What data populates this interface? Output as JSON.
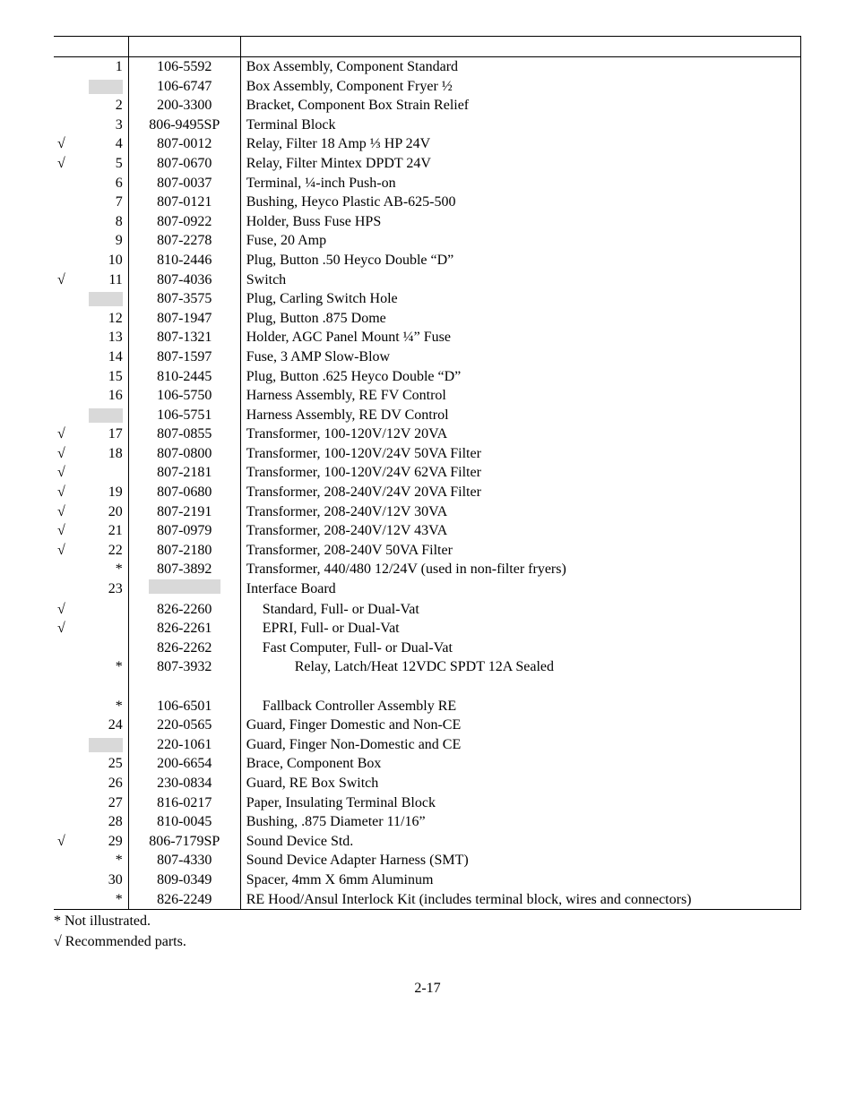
{
  "colors": {
    "background": "#ffffff",
    "text": "#000000",
    "border": "#000000",
    "shade": "#d9d9d9"
  },
  "typography": {
    "font_family": "Times New Roman",
    "font_size_pt": 12,
    "line_height": 1.35
  },
  "table": {
    "rows": [
      {
        "check": false,
        "item": "1",
        "part": "106-5592",
        "desc": "Box Assembly, Component Standard",
        "shade_item": false
      },
      {
        "check": false,
        "item": "",
        "part": "106-6747",
        "desc": "Box Assembly, Component Fryer ½",
        "shade_item": true
      },
      {
        "check": false,
        "item": "2",
        "part": "200-3300",
        "desc": "Bracket, Component Box Strain Relief"
      },
      {
        "check": false,
        "item": "3",
        "part": "806-9495SP",
        "desc": "Terminal Block"
      },
      {
        "check": true,
        "item": "4",
        "part": "807-0012",
        "desc": "Relay, Filter 18 Amp ⅓ HP 24V"
      },
      {
        "check": true,
        "item": "5",
        "part": "807-0670",
        "desc": "Relay, Filter Mintex DPDT 24V"
      },
      {
        "check": false,
        "item": "6",
        "part": "807-0037",
        "desc": "Terminal, ¼-inch Push-on"
      },
      {
        "check": false,
        "item": "7",
        "part": "807-0121",
        "desc": "Bushing, Heyco Plastic AB-625-500"
      },
      {
        "check": false,
        "item": "8",
        "part": "807-0922",
        "desc": "Holder, Buss Fuse HPS"
      },
      {
        "check": false,
        "item": "9",
        "part": "807-2278",
        "desc": "Fuse, 20 Amp"
      },
      {
        "check": false,
        "item": "10",
        "part": "810-2446",
        "desc": "Plug, Button .50 Heyco Double “D”"
      },
      {
        "check": true,
        "item": "11",
        "part": "807-4036",
        "desc": "Switch"
      },
      {
        "check": false,
        "item": "",
        "part": "807-3575",
        "desc": "Plug, Carling Switch Hole",
        "shade_item": true
      },
      {
        "check": false,
        "item": "12",
        "part": "807-1947",
        "desc": "Plug, Button .875 Dome"
      },
      {
        "check": false,
        "item": "13",
        "part": "807-1321",
        "desc": "Holder, AGC Panel Mount ¼” Fuse"
      },
      {
        "check": false,
        "item": "14",
        "part": "807-1597",
        "desc": "Fuse, 3 AMP Slow-Blow"
      },
      {
        "check": false,
        "item": "15",
        "part": "810-2445",
        "desc": "Plug, Button .625 Heyco Double “D”"
      },
      {
        "check": false,
        "item": "16",
        "part": "106-5750",
        "desc": "Harness Assembly, RE FV Control"
      },
      {
        "check": false,
        "item": "",
        "part": "106-5751",
        "desc": "Harness Assembly, RE DV Control",
        "shade_item": true
      },
      {
        "check": true,
        "item": "17",
        "part": "807-0855",
        "desc": "Transformer, 100-120V/12V 20VA"
      },
      {
        "check": true,
        "item": "18",
        "part": "807-0800",
        "desc": "Transformer, 100-120V/24V 50VA Filter"
      },
      {
        "check": true,
        "item": "",
        "part": "807-2181",
        "desc": "Transformer, 100-120V/24V 62VA Filter",
        "check_shade": true
      },
      {
        "check": true,
        "item": "19",
        "part": "807-0680",
        "desc": "Transformer, 208-240V/24V 20VA Filter"
      },
      {
        "check": true,
        "item": "20",
        "part": "807-2191",
        "desc": "Transformer, 208-240V/12V 30VA"
      },
      {
        "check": true,
        "item": "21",
        "part": "807-0979",
        "desc": "Transformer, 208-240V/12V 43VA"
      },
      {
        "check": true,
        "item": "22",
        "part": "807-2180",
        "desc": "Transformer, 208-240V 50VA Filter"
      },
      {
        "check": false,
        "item": "*",
        "part": "807-3892",
        "desc": "Transformer, 440/480 12/24V (used in non-filter fryers)"
      },
      {
        "check": false,
        "item": "23",
        "part": "",
        "desc": "Interface Board",
        "shade_part": true
      },
      {
        "check": true,
        "item": "",
        "part": "826-2260",
        "desc": "Standard, Full- or Dual-Vat",
        "indent": 1,
        "check_shade": true
      },
      {
        "check": true,
        "item": "",
        "part": "826-2261",
        "desc": "EPRI, Full- or Dual-Vat",
        "indent": 1,
        "check_shade": true
      },
      {
        "check": false,
        "item": "",
        "part": "826-2262",
        "desc": "Fast Computer, Full- or Dual-Vat",
        "indent": 1
      },
      {
        "check": false,
        "item": "*",
        "part": "807-3932",
        "desc": "Relay, Latch/Heat 12VDC SPDT 12A Sealed",
        "indent": 2
      },
      {
        "blank": true
      },
      {
        "check": false,
        "item": "*",
        "part": "106-6501",
        "desc": "Fallback Controller Assembly RE",
        "indent": 1
      },
      {
        "check": false,
        "item": "24",
        "part": "220-0565",
        "desc": "Guard, Finger Domestic and Non-CE"
      },
      {
        "check": false,
        "item": "",
        "part": "220-1061",
        "desc": "Guard, Finger Non-Domestic and CE",
        "shade_item": true
      },
      {
        "check": false,
        "item": "25",
        "part": "200-6654",
        "desc": "Brace, Component Box"
      },
      {
        "check": false,
        "item": "26",
        "part": "230-0834",
        "desc": "Guard, RE Box Switch"
      },
      {
        "check": false,
        "item": "27",
        "part": "816-0217",
        "desc": "Paper, Insulating Terminal Block"
      },
      {
        "check": false,
        "item": "28",
        "part": "810-0045",
        "desc": "Bushing, .875 Diameter 11/16”"
      },
      {
        "check": true,
        "item": "29",
        "part": "806-7179SP",
        "desc": "Sound Device Std."
      },
      {
        "check": false,
        "item": "*",
        "part": "807-4330",
        "desc": "Sound Device Adapter Harness (SMT)"
      },
      {
        "check": false,
        "item": "30",
        "part": "809-0349",
        "desc": "Spacer, 4mm X 6mm Aluminum"
      },
      {
        "check": false,
        "item": "*",
        "part": "826-2249",
        "desc": "RE Hood/Ansul Interlock Kit (includes terminal block, wires and connectors)"
      }
    ]
  },
  "footnotes": {
    "line1": "* Not illustrated.",
    "line2": "√ Recommended parts."
  },
  "page_number": "2-17"
}
